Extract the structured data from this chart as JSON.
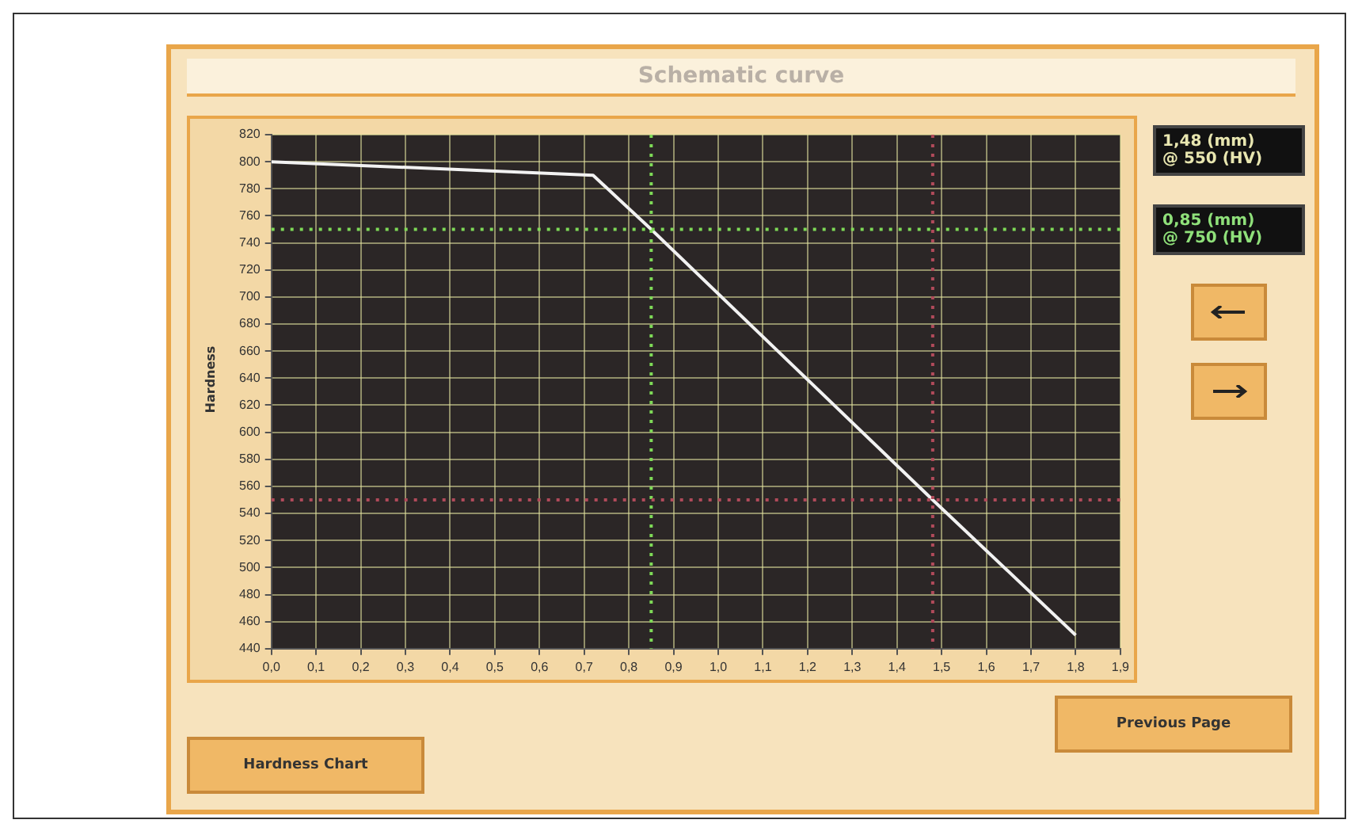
{
  "chart_data": {
    "type": "line",
    "title": "Schematic curve",
    "ylabel": "Hardness",
    "x": [
      0,
      0.72,
      0.85,
      1.48,
      1.8
    ],
    "series": [
      {
        "color": "#f2f2f2",
        "values": [
          800,
          790,
          750,
          550,
          450
        ]
      }
    ],
    "xlim": [
      0,
      1.9
    ],
    "xticks": [
      {
        "value": 0,
        "label": "0,0"
      },
      {
        "value": 0.1,
        "label": "0,1"
      },
      {
        "value": 0.2,
        "label": "0,2"
      },
      {
        "value": 0.3,
        "label": "0,3"
      },
      {
        "value": 0.4,
        "label": "0,4"
      },
      {
        "value": 0.5,
        "label": "0,5"
      },
      {
        "value": 0.6,
        "label": "0,6"
      },
      {
        "value": 0.7,
        "label": "0,7"
      },
      {
        "value": 0.8,
        "label": "0,8"
      },
      {
        "value": 0.9,
        "label": "0,9"
      },
      {
        "value": 1.0,
        "label": "1,0"
      },
      {
        "value": 1.1,
        "label": "1,1"
      },
      {
        "value": 1.2,
        "label": "1,2"
      },
      {
        "value": 1.3,
        "label": "1,3"
      },
      {
        "value": 1.4,
        "label": "1,4"
      },
      {
        "value": 1.5,
        "label": "1,5"
      },
      {
        "value": 1.6,
        "label": "1,6"
      },
      {
        "value": 1.7,
        "label": "1,7"
      },
      {
        "value": 1.8,
        "label": "1,8"
      },
      {
        "value": 1.9,
        "label": "1,9"
      }
    ],
    "ylim": [
      440,
      820
    ],
    "yticks": [
      440,
      460,
      480,
      500,
      520,
      540,
      560,
      580,
      600,
      620,
      640,
      660,
      680,
      700,
      720,
      740,
      760,
      780,
      800,
      820
    ],
    "grid": true,
    "ref_lines": [
      {
        "axis": "y",
        "value": 750,
        "color": "#7ed957",
        "line_style": "dotted"
      },
      {
        "axis": "x",
        "value": 0.85,
        "color": "#7ed957",
        "line_style": "dotted"
      },
      {
        "axis": "y",
        "value": 550,
        "color": "#b04a5a",
        "line_style": "dotted"
      },
      {
        "axis": "x",
        "value": 1.48,
        "color": "#b04a5a",
        "line_style": "dotted"
      }
    ],
    "annotations": [
      "1,48 (mm)\n@ 550 (HV)",
      "0,85 (mm)\n@ 750 (HV)",
      "Hardness Chart",
      "Previous Page"
    ]
  }
}
